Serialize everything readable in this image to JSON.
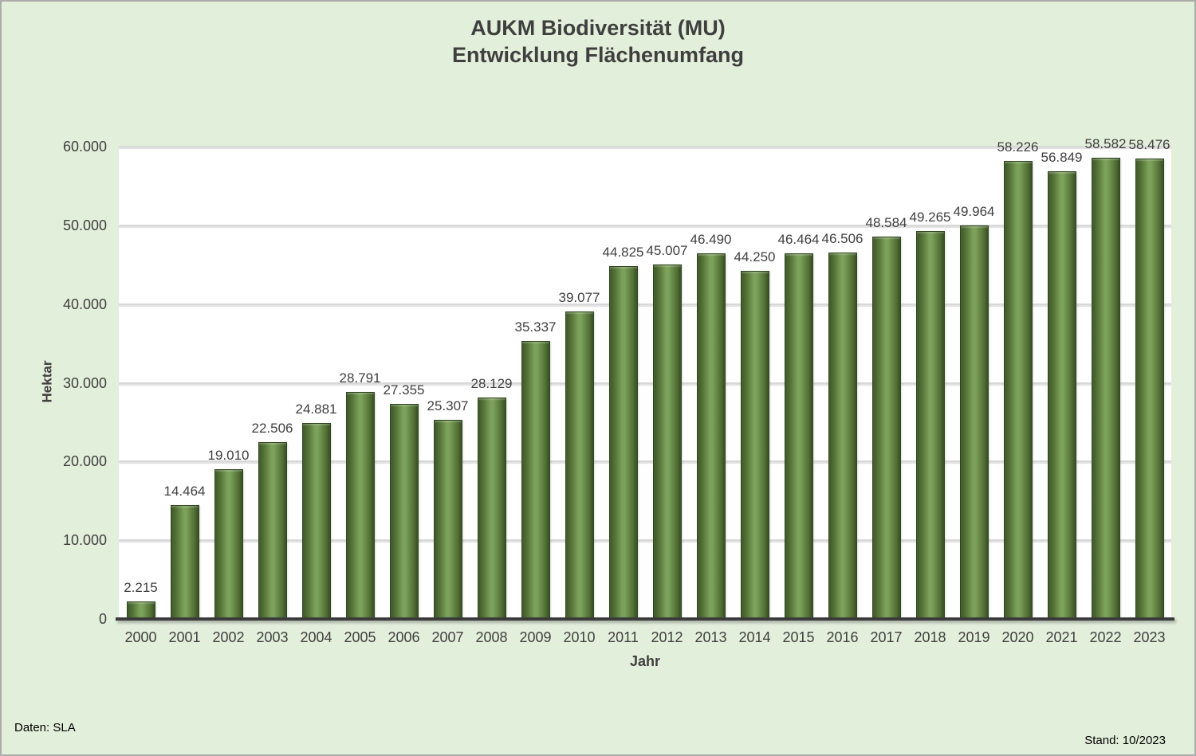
{
  "header": {
    "title_line1": "AUKM Biodiversität (MU)",
    "title_line2": "Entwicklung Flächenumfang"
  },
  "footer": {
    "data_source": "Daten: SLA",
    "status": "Stand: 10/2023"
  },
  "chart_data": {
    "type": "bar",
    "title": "AUKM Biodiversität (MU) Entwicklung Flächenumfang",
    "xlabel": "Jahr",
    "ylabel": "Hektar",
    "categories": [
      "2000",
      "2001",
      "2002",
      "2003",
      "2004",
      "2005",
      "2006",
      "2007",
      "2008",
      "2009",
      "2010",
      "2011",
      "2012",
      "2013",
      "2014",
      "2015",
      "2016",
      "2017",
      "2018",
      "2019",
      "2020",
      "2021",
      "2022",
      "2023"
    ],
    "values": [
      2215,
      14464,
      19010,
      22506,
      24881,
      28791,
      27355,
      25307,
      28129,
      35337,
      39077,
      44825,
      45007,
      46490,
      44250,
      46464,
      46506,
      48584,
      49265,
      49964,
      58226,
      56849,
      58582,
      58476
    ],
    "data_labels": [
      "2.215",
      "14.464",
      "19.010",
      "22.506",
      "24.881",
      "28.791",
      "27.355",
      "25.307",
      "28.129",
      "35.337",
      "39.077",
      "44.825",
      "45.007",
      "46.490",
      "44.250",
      "46.464",
      "46.506",
      "48.584",
      "49.265",
      "49.964",
      "58.226",
      "56.849",
      "58.582",
      "58.476"
    ],
    "ylim": [
      0,
      60000
    ],
    "ytick_step": 10000,
    "ytick_labels": [
      "0",
      "10.000",
      "20.000",
      "30.000",
      "40.000",
      "50.000",
      "60.000"
    ],
    "grid": true,
    "legend": false,
    "colors": {
      "background": "#E2EFDA",
      "plot_background": "#FFFFFF",
      "bar_dark": "#3E5728",
      "bar_mid": "#567539",
      "bar_light": "#7CA15A",
      "bar_border": "#2F471D",
      "gridline": "#D8D8D8",
      "axis": "#3B3B3B",
      "text": "#3F3F3F"
    }
  }
}
